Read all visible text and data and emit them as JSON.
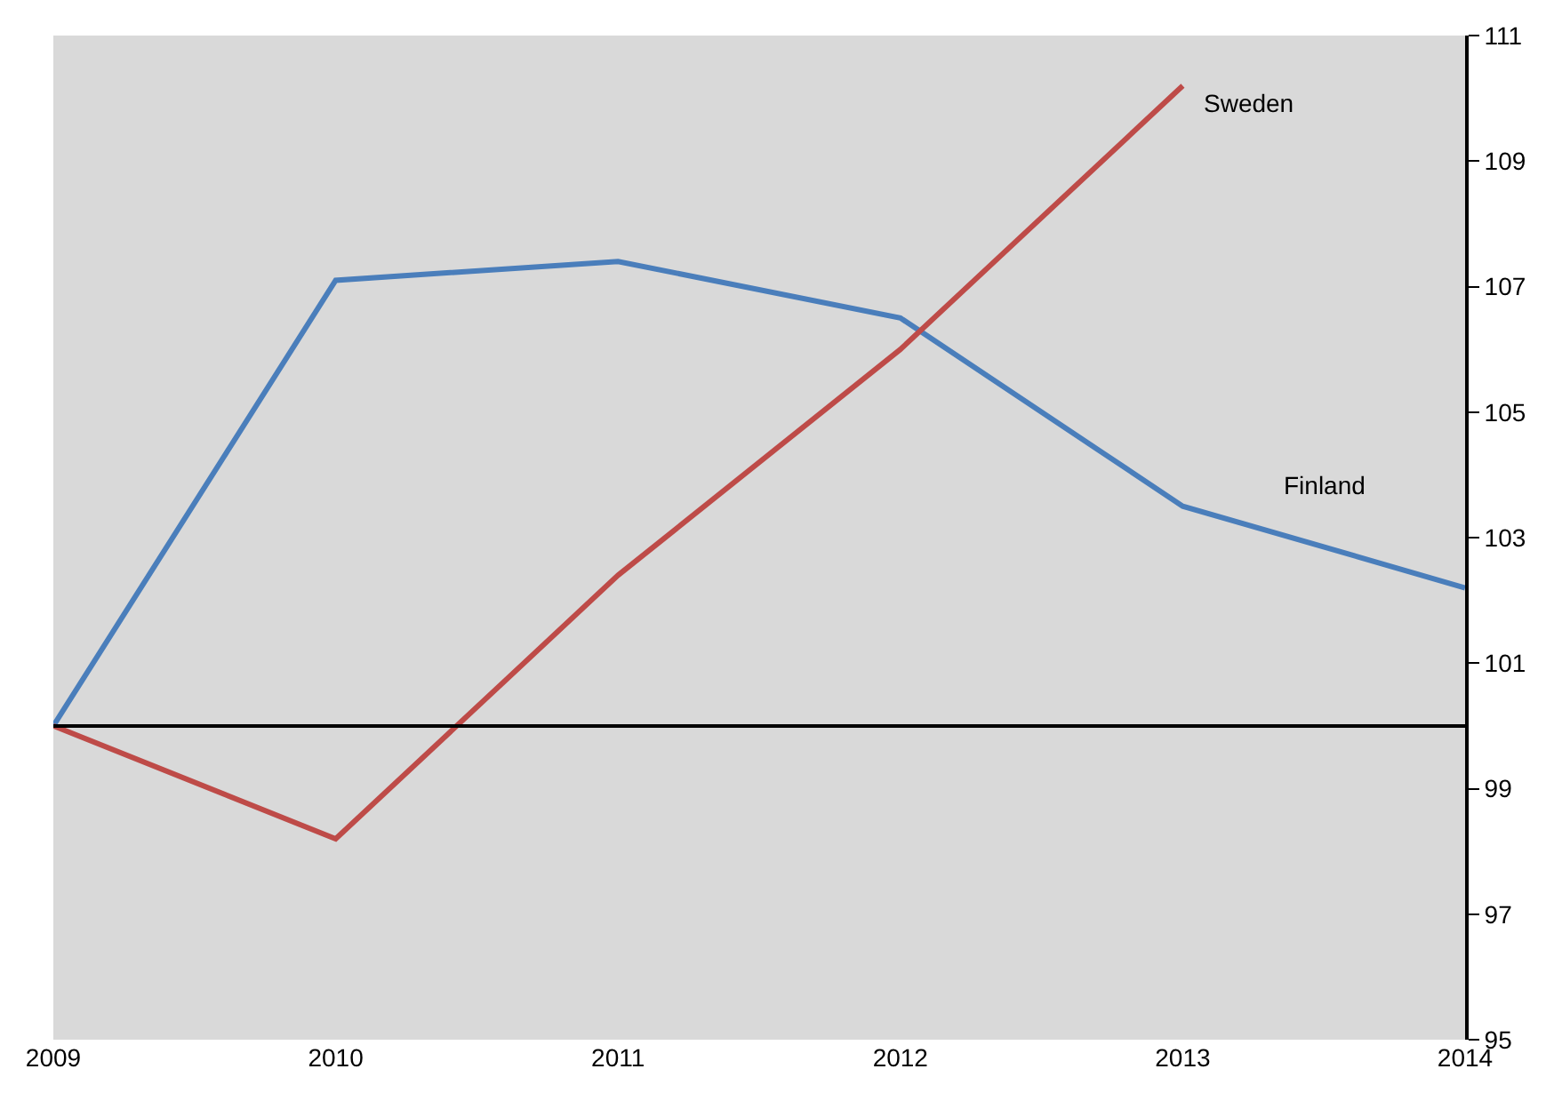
{
  "chart_data": {
    "type": "line",
    "categories": [
      "2009",
      "2010",
      "2011",
      "2012",
      "2013",
      "2014"
    ],
    "series": [
      {
        "name": "Finland",
        "color": "#4a7ebb",
        "values": [
          100,
          107.1,
          107.4,
          106.5,
          103.5,
          102.2
        ]
      },
      {
        "name": "Sweden",
        "color": "#be4b48",
        "values": [
          100,
          98.2,
          102.4,
          106.0,
          110.2,
          null
        ]
      }
    ],
    "ylim": [
      95,
      111
    ],
    "yticks": [
      95,
      97,
      99,
      101,
      103,
      105,
      107,
      109,
      111
    ],
    "ref_lines": [
      {
        "axis": "y",
        "value": 100,
        "color": "#000000"
      }
    ],
    "grid": false,
    "legend": false,
    "marker": "none",
    "line_style": "solid"
  }
}
